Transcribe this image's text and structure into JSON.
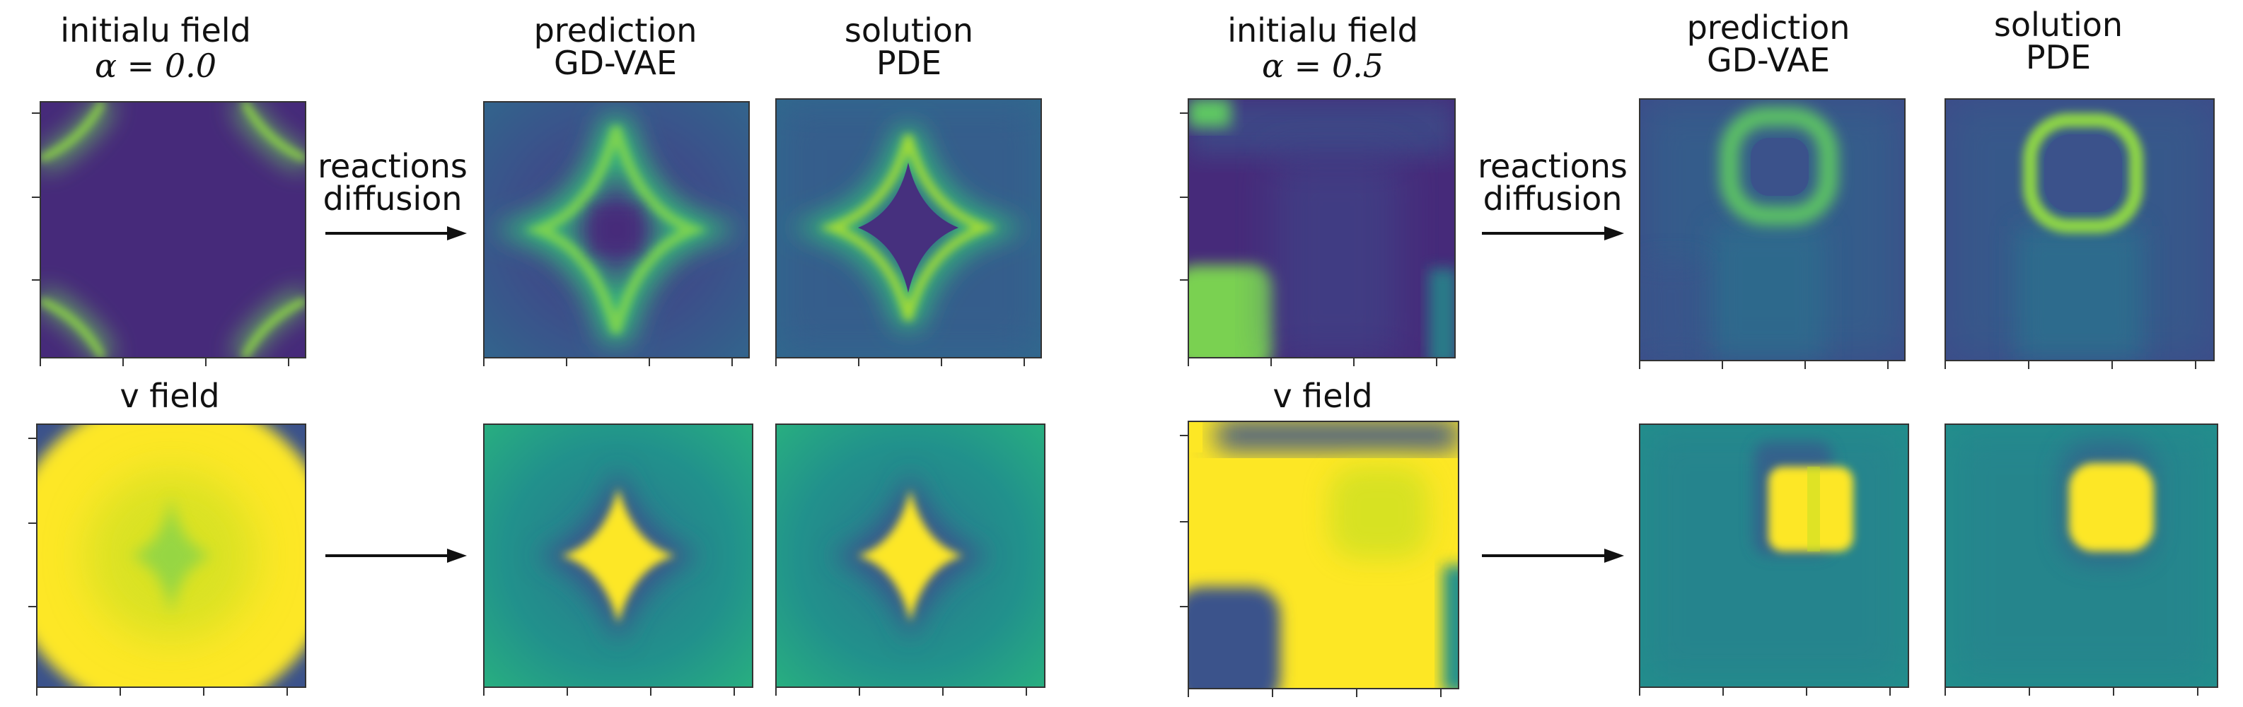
{
  "groups": [
    {
      "top": {
        "title_line1": "initialu field",
        "title_line2": "α = 0.0",
        "arrow_line1": "reactions",
        "arrow_line2": "diffusion",
        "pred_line1": "prediction",
        "pred_line2": "GD-VAE",
        "sol_line1": "solution",
        "sol_line2": "PDE"
      },
      "bottom": {
        "title": "v field"
      }
    },
    {
      "top": {
        "title_line1": "initialu field",
        "title_line2": "α = 0.5",
        "arrow_line1": "reactions",
        "arrow_line2": "diffusion",
        "pred_line1": "prediction",
        "pred_line2": "GD-VAE",
        "sol_line1": "solution",
        "sol_line2": "PDE"
      },
      "bottom": {
        "title": "v field"
      }
    }
  ],
  "colors": {
    "viridis_dark": "#440154",
    "viridis_purple": "#472f7d",
    "viridis_blue": "#3b528b",
    "viridis_teal": "#21918c",
    "viridis_green": "#5ec962",
    "viridis_yellow": "#fde725",
    "frame": "#333333"
  }
}
